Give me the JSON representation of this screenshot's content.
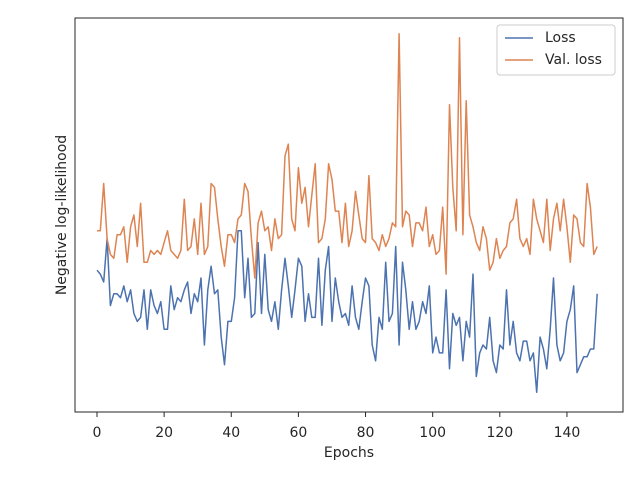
{
  "chart_data": {
    "type": "line",
    "x_label": "Epochs",
    "y_label": "Negative log-likelihood",
    "x": [
      0,
      1,
      2,
      3,
      4,
      5,
      6,
      7,
      8,
      9,
      10,
      11,
      12,
      13,
      14,
      15,
      16,
      17,
      18,
      19,
      20,
      21,
      22,
      23,
      24,
      25,
      26,
      27,
      28,
      29,
      30,
      31,
      32,
      33,
      34,
      35,
      36,
      37,
      38,
      39,
      40,
      41,
      42,
      43,
      44,
      45,
      46,
      47,
      48,
      49,
      50,
      51,
      52,
      53,
      54,
      55,
      56,
      57,
      58,
      59,
      60,
      61,
      62,
      63,
      64,
      65,
      66,
      67,
      68,
      69,
      70,
      71,
      72,
      73,
      74,
      75,
      76,
      77,
      78,
      79,
      80,
      81,
      82,
      83,
      84,
      85,
      86,
      87,
      88,
      89,
      90,
      91,
      92,
      93,
      94,
      95,
      96,
      97,
      98,
      99,
      100,
      101,
      102,
      103,
      104,
      105,
      106,
      107,
      108,
      109,
      110,
      111,
      112,
      113,
      114,
      115,
      116,
      117,
      118,
      119,
      120,
      121,
      122,
      123,
      124,
      125,
      126,
      127,
      128,
      129,
      130,
      131,
      132,
      133,
      134,
      135,
      136,
      137,
      138,
      139,
      140,
      141,
      142,
      143,
      144,
      145,
      146,
      147,
      148,
      149
    ],
    "series": [
      {
        "name": "Loss",
        "color": "#4c72b0",
        "values": [
          36,
          35,
          33,
          44,
          27,
          30,
          30,
          29,
          32,
          28,
          31,
          25,
          23,
          24,
          31,
          21,
          31,
          27,
          25,
          28,
          21,
          21,
          32,
          26,
          29,
          28,
          31,
          33,
          25,
          30,
          28,
          34,
          17,
          31,
          37,
          30,
          31,
          19,
          12,
          23,
          23,
          29,
          46,
          46,
          29,
          39,
          24,
          25,
          43,
          25,
          40,
          26,
          23,
          28,
          21,
          31,
          39,
          32,
          24,
          31,
          39,
          37,
          23,
          30,
          24,
          24,
          39,
          22,
          36,
          42,
          23,
          34,
          28,
          24,
          25,
          22,
          32,
          24,
          21,
          28,
          34,
          32,
          17,
          13,
          24,
          21,
          38,
          23,
          25,
          42,
          17,
          38,
          31,
          21,
          28,
          21,
          23,
          28,
          25,
          32,
          15,
          19,
          15,
          15,
          31,
          11,
          25,
          22,
          24,
          13,
          23,
          19,
          35,
          9,
          15,
          17,
          16,
          24,
          13,
          10,
          17,
          16,
          31,
          17,
          23,
          15,
          13,
          18,
          18,
          13,
          15,
          5,
          19,
          16,
          11,
          21,
          34,
          17,
          13,
          15,
          23,
          26,
          32,
          10,
          12,
          14,
          14,
          16,
          16,
          30
        ]
      },
      {
        "name": "Val. loss",
        "color": "#dd8452",
        "values": [
          46,
          46,
          58,
          44,
          40,
          39,
          45,
          45,
          47,
          38,
          47,
          50,
          42,
          53,
          38,
          38,
          41,
          40,
          41,
          40,
          43,
          46,
          41,
          40,
          39,
          41,
          54,
          41,
          42,
          49,
          40,
          53,
          40,
          42,
          58,
          57,
          49,
          42,
          37,
          45,
          45,
          43,
          49,
          50,
          58,
          56,
          44,
          34,
          48,
          51,
          46,
          47,
          41,
          49,
          44,
          45,
          65,
          68,
          49,
          46,
          62,
          53,
          57,
          47,
          55,
          63,
          43,
          44,
          49,
          63,
          59,
          51,
          51,
          43,
          53,
          42,
          46,
          56,
          50,
          44,
          43,
          60,
          44,
          43,
          41,
          45,
          42,
          44,
          48,
          47,
          96,
          47,
          51,
          50,
          42,
          48,
          48,
          46,
          52,
          42,
          45,
          40,
          41,
          52,
          35,
          78,
          57,
          46,
          95,
          45,
          79,
          50,
          47,
          43,
          41,
          47,
          44,
          36,
          38,
          44,
          39,
          41,
          42,
          48,
          49,
          54,
          44,
          42,
          44,
          40,
          54,
          49,
          46,
          43,
          54,
          41,
          49,
          53,
          46,
          54,
          47,
          38,
          50,
          49,
          43,
          42,
          58,
          52,
          40,
          42
        ]
      }
    ],
    "xlim": [
      -6.55,
      156.7
    ],
    "xticks": [
      0,
      20,
      40,
      60,
      80,
      100,
      120,
      140
    ],
    "ylim": [
      0,
      100
    ],
    "legend": "upper right"
  }
}
